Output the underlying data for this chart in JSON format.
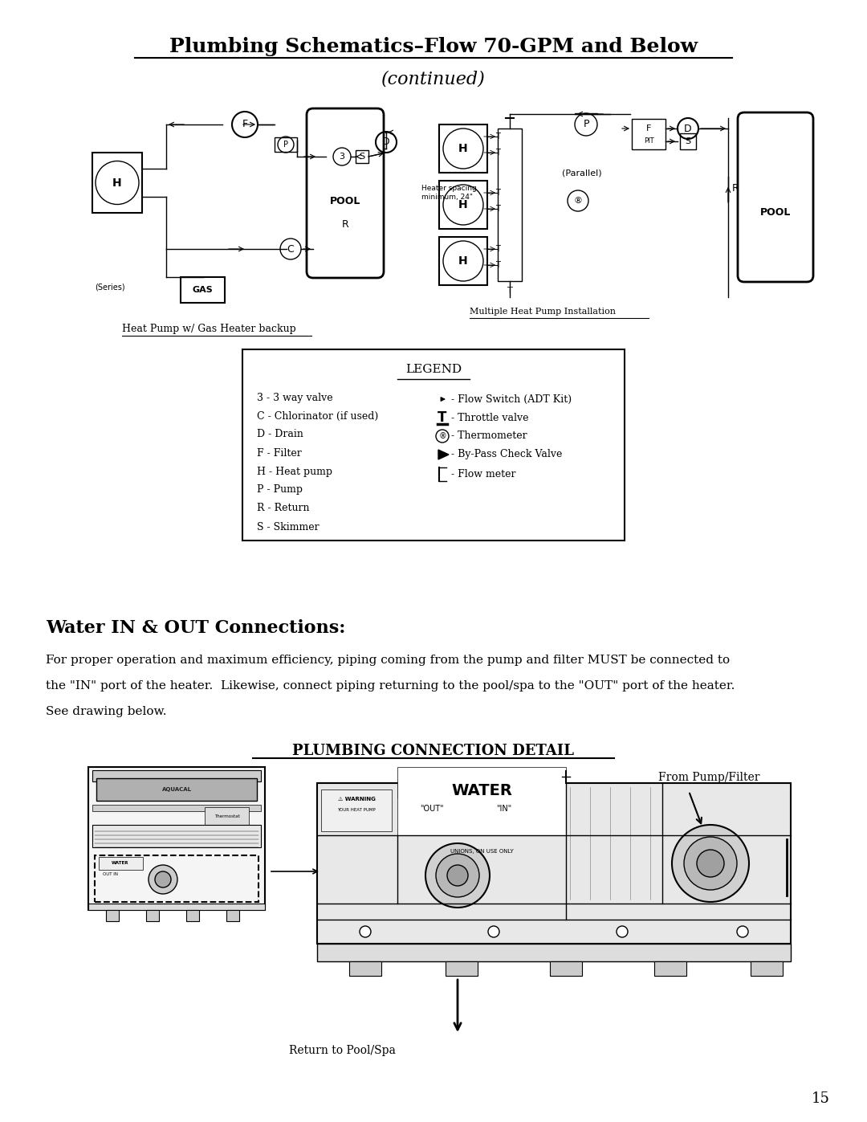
{
  "title_line1": "Plumbing Schematics–Flow 70-GPM and Below",
  "title_line2": "(continued)",
  "section_heading": "Water IN & OUT Connections:",
  "body_line1": "For proper operation and maximum efficiency, piping coming from the pump and filter MUST be connected to",
  "body_line2": "the \"IN\" port of the heater.  Likewise, connect piping returning to the pool/spa to the \"OUT\" port of the heater.",
  "body_line3": "See drawing below.",
  "subheading": "PLUMBING CONNECTION DETAIL",
  "caption_left": "Heat Pump w/ Gas Heater backup",
  "caption_right": "Multiple Heat Pump Installation",
  "legend_title": "LEGEND",
  "legend_left": [
    "3 - 3 way valve",
    "C - Chlorinator (if used)",
    "D - Drain",
    "F - Filter",
    "H - Heat pump",
    "P - Pump",
    "R - Return",
    "S - Skimmer"
  ],
  "legend_right_labels": [
    "- Flow Switch (ADT Kit)",
    "- Throttle valve",
    "- Thermometer",
    "- By-Pass Check Valve",
    "- Flow meter"
  ],
  "from_pump_label": "From Pump/Filter",
  "return_label": "Return to Pool/Spa",
  "page_number": "15",
  "bg_color": "#ffffff",
  "text_color": "#000000"
}
